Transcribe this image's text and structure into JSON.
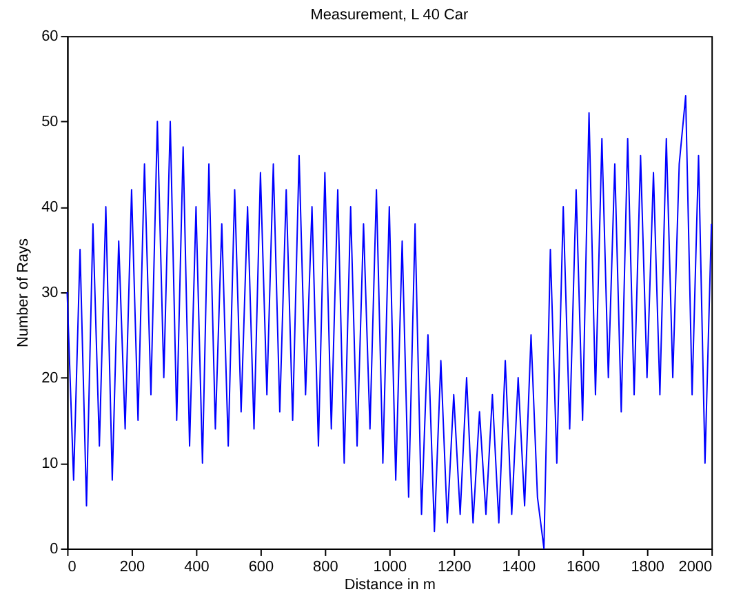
{
  "chart_data": {
    "type": "line",
    "title": "Measurement, L 40 Car",
    "xlabel": "Distance in m",
    "ylabel": "Number of Rays",
    "x": [
      0,
      20,
      40,
      60,
      80,
      100,
      120,
      140,
      160,
      180,
      200,
      220,
      240,
      260,
      280,
      300,
      320,
      340,
      360,
      380,
      400,
      420,
      440,
      460,
      480,
      500,
      520,
      540,
      560,
      580,
      600,
      620,
      640,
      660,
      680,
      700,
      720,
      740,
      760,
      780,
      800,
      820,
      840,
      860,
      880,
      900,
      920,
      940,
      960,
      980,
      1000,
      1020,
      1040,
      1060,
      1080,
      1100,
      1120,
      1140,
      1160,
      1180,
      1200,
      1220,
      1240,
      1260,
      1280,
      1300,
      1320,
      1340,
      1360,
      1380,
      1400,
      1420,
      1440,
      1460,
      1480,
      1500,
      1520,
      1540,
      1560,
      1580,
      1600,
      1620,
      1640,
      1660,
      1680,
      1700,
      1720,
      1740,
      1760,
      1780,
      1800,
      1820,
      1840,
      1860,
      1880,
      1900,
      1920,
      1940,
      1960,
      1980,
      2000
    ],
    "series": [
      {
        "color": "#0000ff",
        "values": [
          30,
          8,
          35,
          5,
          38,
          12,
          40,
          8,
          36,
          14,
          42,
          15,
          45,
          18,
          50,
          20,
          50,
          15,
          47,
          12,
          40,
          10,
          45,
          14,
          38,
          12,
          42,
          16,
          40,
          14,
          44,
          18,
          45,
          16,
          42,
          15,
          46,
          18,
          40,
          12,
          44,
          14,
          42,
          10,
          40,
          12,
          38,
          14,
          42,
          10,
          40,
          8,
          36,
          6,
          38,
          4,
          25,
          2,
          22,
          3,
          18,
          4,
          20,
          3,
          16,
          4,
          18,
          3,
          22,
          4,
          20,
          5,
          25,
          6,
          0,
          35,
          10,
          40,
          14,
          42,
          15,
          51,
          18,
          48,
          20,
          45,
          16,
          48,
          18,
          46,
          20,
          44,
          18,
          48,
          20,
          45,
          53,
          18,
          46,
          10,
          38
        ]
      }
    ],
    "xlim": [
      0,
      2000
    ],
    "xticks": [
      0,
      200,
      400,
      600,
      800,
      1000,
      1200,
      1400,
      1600,
      1800,
      2000
    ],
    "ylim": [
      0,
      60
    ],
    "yticks": [
      0,
      10,
      20,
      30,
      40,
      50,
      60
    ],
    "line_style": "solid",
    "marker": "none"
  }
}
